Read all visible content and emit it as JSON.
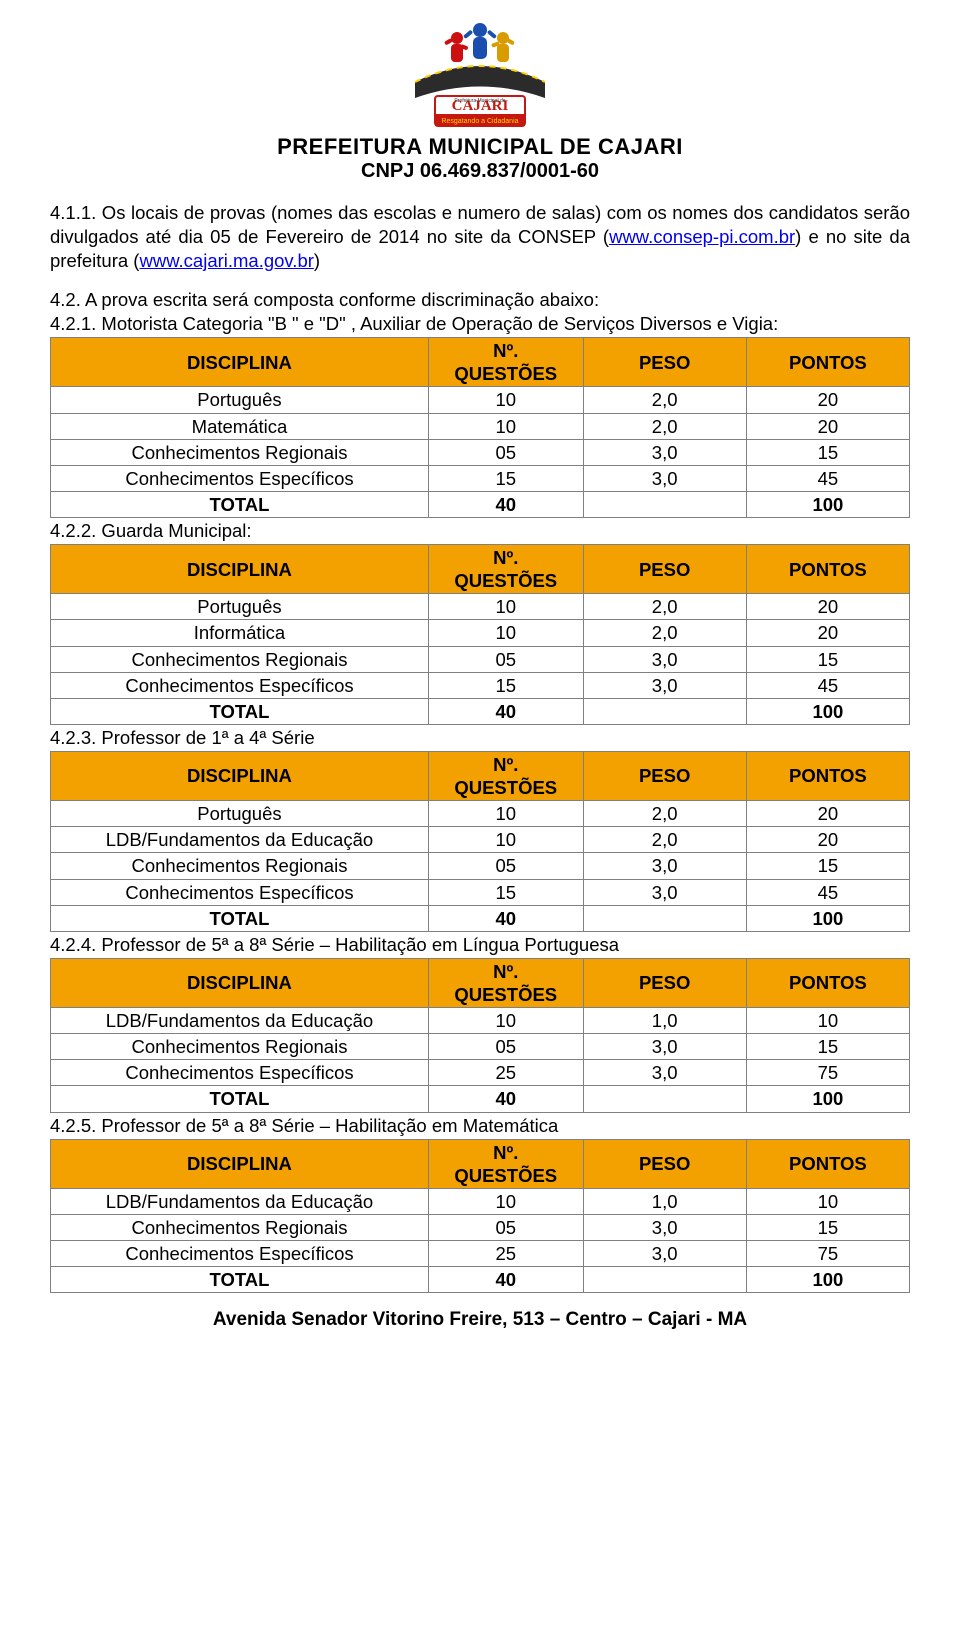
{
  "colors": {
    "header_bg": "#f2a100",
    "cell_border": "#808080",
    "link": "#0000ee",
    "text": "#000000",
    "page_bg": "#ffffff"
  },
  "header": {
    "org_line_1": "PREFEITURA MUNICIPAL DE CAJARI",
    "org_line_2": "CNPJ 06.469.837/0001-60",
    "logo_text_top": "CAJARI",
    "logo_text_sub": "Resgatando a Cidadania"
  },
  "para_411_prefix": "4.1.1. Os locais de provas (nomes das escolas e numero de salas) com os nomes dos candidatos serão divulgados até dia 05 de Fevereiro de 2014 no site da CONSEP (",
  "para_411_link1": "www.consep-pi.com.br",
  "para_411_mid": ") e no site da prefeitura (",
  "para_411_link2": "www.cajari.ma.gov.br",
  "para_411_suffix": ")",
  "sec_42": "4.2. A prova escrita será composta conforme discriminação abaixo:",
  "table_headers": {
    "disciplina": "DISCIPLINA",
    "questoes": "Nº. QUESTÕES",
    "peso": "PESO",
    "pontos": "PONTOS"
  },
  "sections": [
    {
      "title": "4.2.1. Motorista Categoria \"B \" e \"D\" , Auxiliar de Operação de Serviços Diversos e Vigia:",
      "rows": [
        {
          "d": "Português",
          "q": "10",
          "peso": "2,0",
          "pts": "20"
        },
        {
          "d": "Matemática",
          "q": "10",
          "peso": "2,0",
          "pts": "20"
        },
        {
          "d": "Conhecimentos Regionais",
          "q": "05",
          "peso": "3,0",
          "pts": "15"
        },
        {
          "d": "Conhecimentos Específicos",
          "q": "15",
          "peso": "3,0",
          "pts": "45"
        }
      ],
      "total": {
        "d": "TOTAL",
        "q": "40",
        "peso": "",
        "pts": "100"
      }
    },
    {
      "title": "4.2.2. Guarda Municipal:",
      "rows": [
        {
          "d": "Português",
          "q": "10",
          "peso": "2,0",
          "pts": "20"
        },
        {
          "d": "Informática",
          "q": "10",
          "peso": "2,0",
          "pts": "20"
        },
        {
          "d": "Conhecimentos Regionais",
          "q": "05",
          "peso": "3,0",
          "pts": "15"
        },
        {
          "d": "Conhecimentos Específicos",
          "q": "15",
          "peso": "3,0",
          "pts": "45"
        }
      ],
      "total": {
        "d": "TOTAL",
        "q": "40",
        "peso": "",
        "pts": "100"
      }
    },
    {
      "title": "4.2.3. Professor de 1ª a 4ª Série",
      "rows": [
        {
          "d": "Português",
          "q": "10",
          "peso": "2,0",
          "pts": "20"
        },
        {
          "d": "LDB/Fundamentos da Educação",
          "q": "10",
          "peso": "2,0",
          "pts": "20"
        },
        {
          "d": "Conhecimentos Regionais",
          "q": "05",
          "peso": "3,0",
          "pts": "15"
        },
        {
          "d": "Conhecimentos Específicos",
          "q": "15",
          "peso": "3,0",
          "pts": "45"
        }
      ],
      "total": {
        "d": "TOTAL",
        "q": "40",
        "peso": "",
        "pts": "100"
      }
    },
    {
      "title": "4.2.4. Professor de 5ª a 8ª Série – Habilitação em Língua Portuguesa",
      "rows": [
        {
          "d": "LDB/Fundamentos da Educação",
          "q": "10",
          "peso": "1,0",
          "pts": "10"
        },
        {
          "d": "Conhecimentos Regionais",
          "q": "05",
          "peso": "3,0",
          "pts": "15"
        },
        {
          "d": "Conhecimentos Específicos",
          "q": "25",
          "peso": "3,0",
          "pts": "75"
        }
      ],
      "total": {
        "d": "TOTAL",
        "q": "40",
        "peso": "",
        "pts": "100"
      }
    },
    {
      "title": "4.2.5. Professor de 5ª a 8ª Série – Habilitação em Matemática",
      "rows": [
        {
          "d": "LDB/Fundamentos da Educação",
          "q": "10",
          "peso": "1,0",
          "pts": "10"
        },
        {
          "d": "Conhecimentos Regionais",
          "q": "05",
          "peso": "3,0",
          "pts": "15"
        },
        {
          "d": "Conhecimentos Específicos",
          "q": "25",
          "peso": "3,0",
          "pts": "75"
        }
      ],
      "total": {
        "d": "TOTAL",
        "q": "40",
        "peso": "",
        "pts": "100"
      }
    }
  ],
  "footer": "Avenida Senador Vitorino Freire, 513 – Centro – Cajari - MA"
}
